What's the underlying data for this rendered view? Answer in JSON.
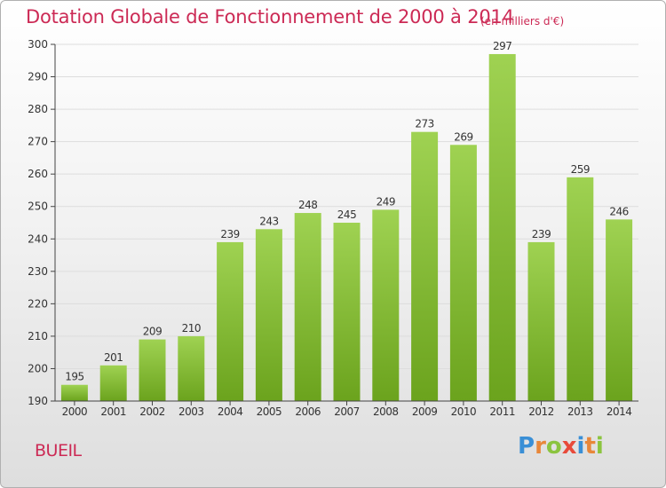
{
  "title": "Dotation Globale de Fonctionnement de 2000 à 2014",
  "subtitle": "(en milliers d'€)",
  "commune": "BUEIL",
  "logo": {
    "letters": [
      {
        "char": "P",
        "color": "#3a8fd6"
      },
      {
        "char": "r",
        "color": "#e8873a"
      },
      {
        "char": "o",
        "color": "#8bc43f"
      },
      {
        "char": "x",
        "color": "#e84a3a"
      },
      {
        "char": "i",
        "color": "#3a8fd6"
      },
      {
        "char": "t",
        "color": "#e8873a"
      },
      {
        "char": "i",
        "color": "#8bc43f"
      }
    ]
  },
  "colors": {
    "bar_top": "#9fd252",
    "bar_bottom": "#6ba31d",
    "accent": "#cc2a55",
    "grid": "#dddddd",
    "axis": "#444444"
  },
  "chart_data": {
    "type": "bar",
    "title": "Dotation Globale de Fonctionnement de 2000 à 2014",
    "subtitle": "(en milliers d'€)",
    "xlabel": "",
    "ylabel": "",
    "ylim": [
      190,
      300
    ],
    "yticks": [
      190,
      200,
      210,
      220,
      230,
      240,
      250,
      260,
      270,
      280,
      290,
      300
    ],
    "grid": true,
    "categories": [
      "2000",
      "2001",
      "2002",
      "2003",
      "2004",
      "2005",
      "2006",
      "2007",
      "2008",
      "2009",
      "2010",
      "2011",
      "2012",
      "2013",
      "2014"
    ],
    "values": [
      195,
      201,
      209,
      210,
      239,
      243,
      248,
      245,
      249,
      273,
      269,
      297,
      239,
      259,
      246
    ]
  }
}
